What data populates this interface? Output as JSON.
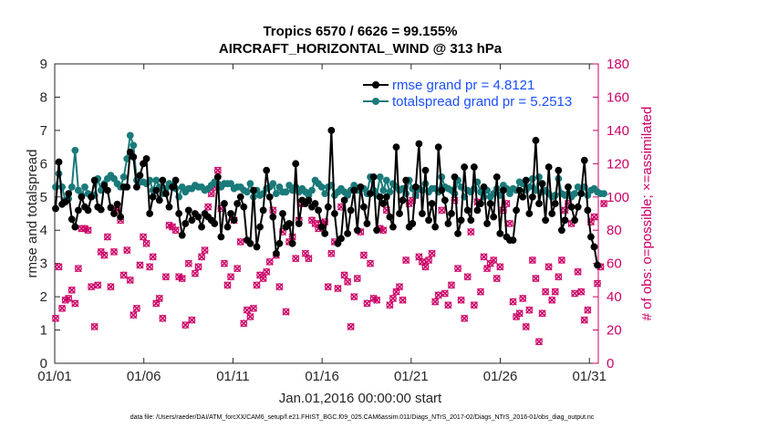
{
  "chart_data": {
    "type": "line",
    "title": "Tropics 6570 / 6626 = 99.155%",
    "subtitle": "AIRCRAFT_HORIZONTAL_WIND @ 313 hPa",
    "xlabel": "Jan.01,2016 00:00:00 start",
    "ylabel": "rmse and totalspread",
    "y2label": "# of obs: o=possible; ×=assimilated",
    "footer": "data file: /Users/raeder/DAI/ATM_forcXX/CAM6_setup/f.e21.FHIST_BGC.f09_025.CAM6assim.011/Diags_NTrS_2017-02/Diags_NTrS_2016-01/obs_diag_output.nc",
    "x_ticks": [
      "01/01",
      "01/06",
      "01/11",
      "01/16",
      "01/21",
      "01/26",
      "01/31"
    ],
    "x_tick_days": [
      0,
      5,
      10,
      15,
      20,
      25,
      30
    ],
    "xlim": [
      0,
      30.5
    ],
    "ylim": [
      0,
      9
    ],
    "y_ticks": [
      "0",
      "1",
      "2",
      "3",
      "4",
      "5",
      "6",
      "7",
      "8",
      "9"
    ],
    "y2lim": [
      0,
      180
    ],
    "y2_ticks": [
      "0",
      "20",
      "40",
      "60",
      "80",
      "100",
      "120",
      "140",
      "160",
      "180"
    ],
    "legend": [
      "rmse grand pr = 4.8121",
      "totalspread grand pr = 5.2513"
    ],
    "legend_position": "top-right",
    "series": [
      {
        "name": "rmse",
        "color": "#000000",
        "values": [
          4.65,
          6.05,
          4.78,
          4.85,
          5.1,
          4.33,
          4.1,
          4.6,
          5.0,
          4.7,
          4.6,
          5.0,
          5.5,
          4.7,
          4.62,
          5.35,
          5.2,
          4.68,
          4.5,
          4.78,
          4.4,
          5.3,
          5.3,
          6.35,
          6.2,
          5.3,
          5.65,
          6.0,
          6.15,
          4.5,
          5.0,
          5.2,
          4.9,
          5.5,
          5.1,
          4.7,
          5.3,
          5.5,
          4.5,
          3.85,
          4.2,
          4.6,
          4.3,
          4.5,
          4.4,
          4.1,
          4.5,
          4.4,
          4.3,
          4.2,
          5.6,
          3.8,
          4.8,
          4.1,
          4.5,
          4.3,
          4.8,
          5.0,
          4.7,
          3.7,
          3.6,
          5.2,
          3.5,
          4.1,
          4.6,
          5.8,
          5.0,
          4.4,
          3.3,
          3.6,
          4.5,
          4.1,
          4.2,
          3.6,
          6.0,
          4.2,
          4.9,
          4.8,
          4.9,
          4.7,
          4.8,
          4.6,
          4.1,
          3.9,
          4.7,
          7.0,
          4.5,
          3.6,
          3.75,
          4.9,
          3.9,
          4.6,
          5.2,
          4.0,
          5.3,
          4.7,
          4.2,
          5.1,
          5.6,
          4.0,
          5.0,
          4.8,
          5.0,
          4.4,
          4.1,
          6.5,
          4.5,
          4.9,
          5.5,
          4.1,
          4.2,
          5.3,
          6.6,
          4.5,
          5.8,
          4.3,
          4.8,
          4.1,
          6.5,
          5.2,
          4.9,
          4.2,
          4.5,
          5.6,
          3.9,
          4.3,
          5.9,
          4.6,
          4.3,
          5.9,
          4.6,
          4.8,
          5.3,
          4.2,
          4.8,
          4.4,
          5.6,
          3.9,
          5.2,
          3.8,
          3.7,
          3.7,
          4.6,
          5.2,
          5.0,
          5.5,
          4.5,
          5.0,
          6.7,
          4.8,
          5.4,
          4.3,
          5.9,
          4.5,
          4.8,
          5.8,
          4.0,
          4.3,
          5.3,
          4.7,
          4.3,
          4.7,
          5.1,
          6.1,
          4.6,
          3.8,
          3.5,
          2.95
        ]
      },
      {
        "name": "totalspread",
        "color": "#1a7a7a",
        "values": [
          5.3,
          5.7,
          5.3,
          4.9,
          4.95,
          5.3,
          6.4,
          5.2,
          5.05,
          5.3,
          5.1,
          5.0,
          5.05,
          5.55,
          5.2,
          5.4,
          5.55,
          5.65,
          5.55,
          5.4,
          5.3,
          5.6,
          6.15,
          6.85,
          6.55,
          5.5,
          5.45,
          5.45,
          5.4,
          5.5,
          5.2,
          5.5,
          5.3,
          5.1,
          5.25,
          5.4,
          5.35,
          5.25,
          5.0,
          5.3,
          5.15,
          5.25,
          5.25,
          5.35,
          5.3,
          5.3,
          5.2,
          5.25,
          5.35,
          5.45,
          5.4,
          5.3,
          5.4,
          5.4,
          5.4,
          5.25,
          5.3,
          5.3,
          5.2,
          5.15,
          5.4,
          5.0,
          5.2,
          5.05,
          5.1,
          5.25,
          5.3,
          5.4,
          5.1,
          5.3,
          5.15,
          5.15,
          5.35,
          5.2,
          5.3,
          5.15,
          5.25,
          5.15,
          5.05,
          5.2,
          5.5,
          5.4,
          5.3,
          5.1,
          5.3,
          5.35,
          5.05,
          5.15,
          5.25,
          5.15,
          5.05,
          5.2,
          5.35,
          5.2,
          5.3,
          5.25,
          5.1,
          5.6,
          5.2,
          5.05,
          5.6,
          5.2,
          5.5,
          5.15,
          5.4,
          5.3,
          5.2,
          5.25,
          5.1,
          5.5,
          5.25,
          5.05,
          5.25,
          5.2,
          5.4,
          5.15,
          5.25,
          5.25,
          5.15,
          5.6,
          5.3,
          5.25,
          5.2,
          5.1,
          5.5,
          5.3,
          5.0,
          5.2,
          5.15,
          5.25,
          5.45,
          5.15,
          5.0,
          5.2,
          5.0,
          5.1,
          5.25,
          5.05,
          5.35,
          5.25,
          5.1,
          5.25,
          5.2,
          5.45,
          5.4,
          5.2,
          5.3,
          5.55,
          5.2,
          5.6,
          5.15,
          5.2,
          5.1,
          5.0,
          5.05,
          5.55,
          5.1,
          5.05,
          5.1,
          5.0,
          5.1,
          5.3,
          5.1,
          5.3,
          5.05,
          5.2,
          5.25,
          5.15,
          5.1,
          5.1
        ]
      },
      {
        "name": "obs possible",
        "color": "#cc0066",
        "axis": "right",
        "values": [
          27,
          58,
          33,
          38,
          39,
          44,
          36,
          57,
          81,
          81,
          80,
          46,
          22,
          47,
          67,
          65,
          76,
          46,
          67,
          92,
          86,
          53,
          68,
          50,
          29,
          33,
          59,
          76,
          72,
          58,
          64,
          36,
          39,
          27,
          52,
          83,
          82,
          80,
          52,
          51,
          23,
          60,
          26,
          54,
          58,
          64,
          68,
          94,
          102,
          106,
          116,
          93,
          60,
          47,
          52,
          86,
          57,
          73,
          24,
          32,
          28,
          33,
          47,
          53,
          51,
          55,
          61,
          92,
          65,
          46,
          79,
          31,
          73,
          76,
          63,
          86,
          96,
          66,
          63,
          86,
          84,
          81,
          84,
          85,
          46,
          66,
          73,
          45,
          94,
          53,
          49,
          22,
          40,
          51,
          79,
          65,
          36,
          60,
          39,
          38,
          81,
          80,
          92,
          35,
          39,
          43,
          46,
          38,
          62,
          96,
          98,
          101,
          64,
          61,
          58,
          62,
          66,
          37,
          41,
          92,
          42,
          35,
          47,
          98,
          57,
          38,
          27,
          52,
          79,
          35,
          97,
          43,
          64,
          57,
          60,
          62,
          51,
          58,
          92,
          96,
          84,
          37,
          28,
          30,
          39,
          22,
          32,
          62,
          51,
          13,
          30,
          43,
          58,
          38,
          43,
          52,
          62,
          92,
          96,
          84,
          42,
          55,
          43,
          26,
          32,
          85,
          88,
          48,
          58,
          96
        ]
      }
    ]
  }
}
